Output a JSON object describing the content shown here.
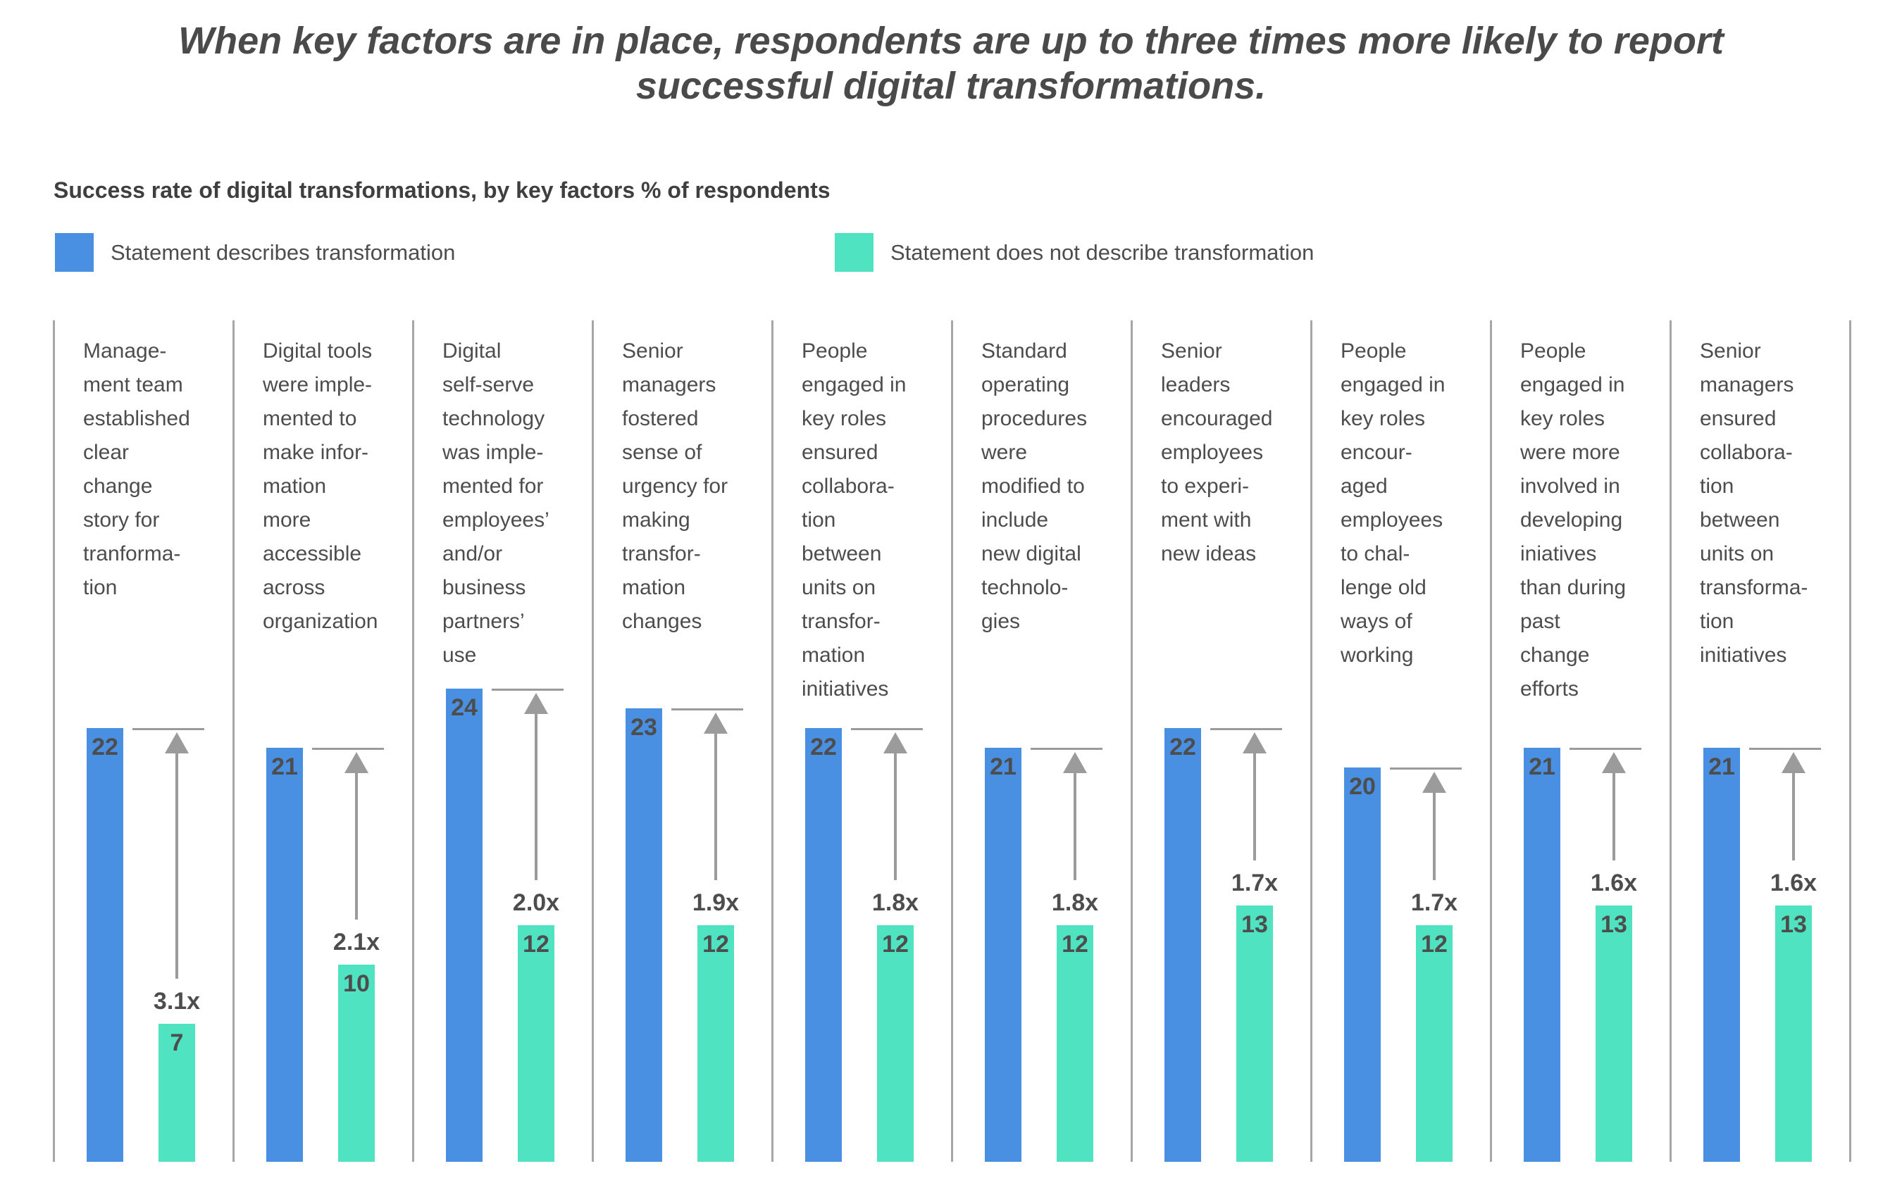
{
  "chart_data": {
    "type": "bar",
    "title": "When key factors are in place, respondents are up to three times more likely to report\nsuccessful digital transformations.",
    "subtitle": "Success rate of digital transformations, by key factors % of respondents",
    "unit": "% of respondents",
    "grid": false,
    "legend_position": "top",
    "ylim": [
      0,
      24
    ],
    "categories": [
      "Manage-\nment team\nestablished\nclear\nchange\nstory for\ntranforma-\ntion",
      "Digital tools\nwere imple-\nmented to\nmake infor-\nmation\nmore\naccessible\nacross\norganization",
      "Digital\nself-serve\ntechnology\nwas imple-\nmented for\nemployees’\nand/or\nbusiness\npartners’\nuse",
      "Senior\nmanagers\nfostered\nsense of\nurgency for\nmaking\ntransfor-\nmation\nchanges",
      "People\nengaged in\nkey roles\nensured\ncollabora-\ntion\nbetween\nunits on\ntransfor-\nmation\ninitiatives",
      "Standard\noperating\nprocedures\nwere\nmodified to\ninclude\nnew digital\ntechnolo-\ngies",
      "Senior\nleaders\nencouraged\nemployees\nto experi-\nment with\nnew ideas",
      "People\nengaged in\nkey roles\nencour-\naged\nemployees\nto chal-\nlenge old\nways of\nworking",
      "People\nengaged in\nkey roles\nwere more\ninvolved in\ndeveloping\niniatives\nthan during\npast\nchange\nefforts",
      "Senior\nmanagers\nensured\ncollabora-\ntion\nbetween\nunits on\ntransforma-\ntion\ninitiatives"
    ],
    "series": [
      {
        "name": "Statement describes transformation",
        "color": "#4a90e2",
        "values": [
          22,
          21,
          24,
          23,
          22,
          21,
          22,
          20,
          21,
          21
        ]
      },
      {
        "name": "Statement does not describe transformation",
        "color": "#50e3c2",
        "values": [
          7,
          10,
          12,
          12,
          12,
          12,
          13,
          12,
          13,
          13
        ]
      }
    ],
    "multipliers": [
      "3.1x",
      "2.1x",
      "2.0x",
      "1.9x",
      "1.8x",
      "1.8x",
      "1.7x",
      "1.7x",
      "1.6x",
      "1.6x"
    ]
  },
  "colors": {
    "blue": "#4a90e2",
    "teal": "#50e3c2",
    "arrow_gray": "#9b9b9b",
    "divider_gray": "#a6a6a6",
    "text_dark": "#4d4d4d"
  }
}
